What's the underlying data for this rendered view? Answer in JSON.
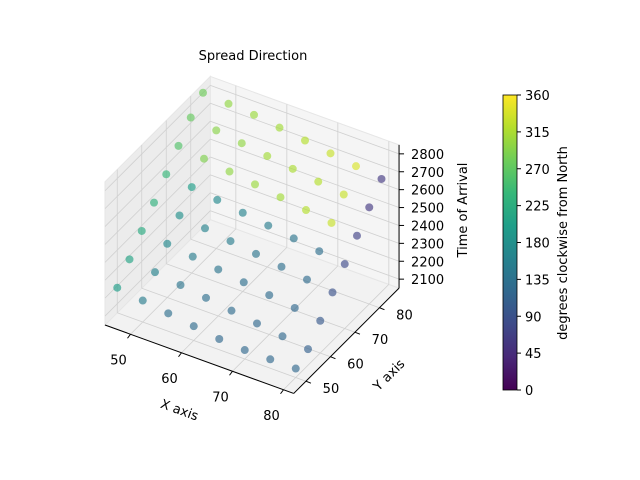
{
  "chart_data": {
    "type": "scatter",
    "title": "Spread Direction",
    "xlabel": "X axis",
    "ylabel": "Y axis",
    "zlabel": "Time of Arrival",
    "xlim": [
      45,
      82
    ],
    "ylim": [
      45,
      88
    ],
    "zlim": [
      2050,
      2850
    ],
    "x_ticks": [
      50,
      60,
      70,
      80
    ],
    "y_ticks": [
      50,
      60,
      70,
      80
    ],
    "z_ticks": [
      2100,
      2200,
      2300,
      2400,
      2500,
      2600,
      2700,
      2800
    ],
    "grid": true,
    "x": [
      45,
      50,
      55,
      60,
      65,
      70,
      75,
      80
    ],
    "y": [
      50,
      55,
      60,
      65,
      70,
      75,
      80,
      85
    ],
    "z": [
      [
        2190,
        2170,
        2150,
        2130,
        2110,
        2100,
        2100,
        2100
      ],
      [
        2280,
        2260,
        2240,
        2220,
        2200,
        2180,
        2160,
        2140
      ],
      [
        2370,
        2350,
        2330,
        2310,
        2290,
        2270,
        2250,
        2230
      ],
      [
        2460,
        2440,
        2420,
        2400,
        2380,
        2360,
        2340,
        2320
      ],
      [
        2550,
        2530,
        2510,
        2490,
        2470,
        2450,
        2430,
        2410
      ],
      [
        2640,
        2620,
        2600,
        2580,
        2560,
        2540,
        2520,
        2500
      ],
      [
        2730,
        2710,
        2690,
        2670,
        2650,
        2630,
        2610,
        2590
      ],
      [
        2800,
        2790,
        2780,
        2760,
        2740,
        2720,
        2700,
        2680
      ]
    ],
    "direction": [
      [
        200,
        150,
        130,
        125,
        120,
        120,
        120,
        120
      ],
      [
        210,
        160,
        140,
        130,
        125,
        120,
        120,
        110
      ],
      [
        220,
        170,
        150,
        140,
        130,
        125,
        120,
        100
      ],
      [
        230,
        180,
        160,
        150,
        140,
        130,
        125,
        90
      ],
      [
        240,
        200,
        170,
        160,
        150,
        140,
        130,
        80
      ],
      [
        260,
        290,
        300,
        305,
        310,
        320,
        330,
        70
      ],
      [
        275,
        295,
        300,
        310,
        315,
        320,
        330,
        60
      ],
      [
        280,
        300,
        305,
        310,
        320,
        330,
        340,
        60
      ]
    ],
    "colormap": "viridis",
    "colorbar": {
      "label": "degrees clockwise from North",
      "range": [
        0,
        360
      ],
      "ticks": [
        0,
        45,
        90,
        135,
        180,
        225,
        270,
        315,
        360
      ]
    }
  }
}
